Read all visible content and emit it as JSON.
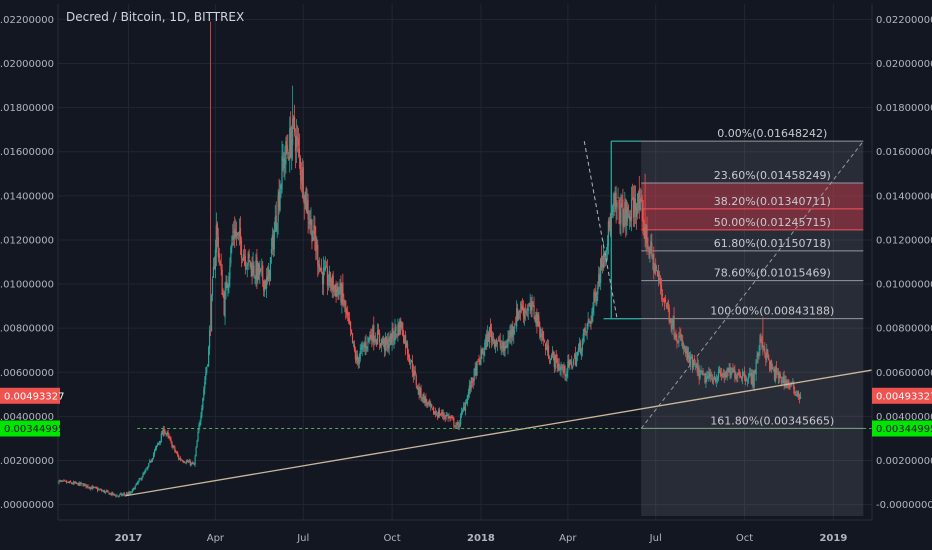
{
  "header": {
    "title": "Decred / Bitcoin, 1D, BITTREX"
  },
  "colors": {
    "background": "#131722",
    "grid": "#232632",
    "candle_up": "#26a69a",
    "candle_down": "#ef5350",
    "trendline": "#c9b99b",
    "fib_lines": "#9598a1",
    "fib_zone": "#f23645",
    "fib_box": "#787b86",
    "channel": "#26a69a",
    "support": "#4caf50",
    "price_badge": "#ef5350",
    "support_badge": "#00e600"
  },
  "axes": {
    "y_ticks": [
      "0.02200000",
      "0.02000000",
      "0.01800000",
      "0.01600000",
      "0.01400000",
      "0.01200000",
      "0.01000000",
      "0.00800000",
      "0.00600000",
      "0.00400000",
      "0.00200000",
      "-0.00000000"
    ],
    "y_tick_values": [
      0.022,
      0.02,
      0.018,
      0.016,
      0.014,
      0.012,
      0.01,
      0.008,
      0.006,
      0.004,
      0.002,
      0.0
    ],
    "x_ticks": [
      {
        "label": "2017",
        "date": "2017-01-01",
        "bold": true
      },
      {
        "label": "Apr",
        "date": "2017-04-01",
        "bold": false
      },
      {
        "label": "Jul",
        "date": "2017-07-01",
        "bold": false
      },
      {
        "label": "Oct",
        "date": "2017-10-01",
        "bold": false
      },
      {
        "label": "2018",
        "date": "2018-01-01",
        "bold": true
      },
      {
        "label": "Apr",
        "date": "2018-04-01",
        "bold": false
      },
      {
        "label": "Jul",
        "date": "2018-07-01",
        "bold": false
      },
      {
        "label": "Oct",
        "date": "2018-10-01",
        "bold": false
      },
      {
        "label": "2019",
        "date": "2019-01-01",
        "bold": true
      }
    ]
  },
  "badges": {
    "last_price": "0.00493327",
    "support_price": "0.00344995"
  },
  "chart_data": {
    "type": "candlestick",
    "title": "Decred / Bitcoin, 1D, BITTREX",
    "x_range": [
      "2016-10-20",
      "2019-02-10"
    ],
    "ylim": [
      -0.0007,
      0.0227
    ],
    "grid": true,
    "close_path": [
      [
        "2016-10-20",
        0.00105
      ],
      [
        "2016-11-15",
        0.0009
      ],
      [
        "2016-12-20",
        0.0004
      ],
      [
        "2017-01-03",
        0.0005
      ],
      [
        "2017-01-20",
        0.0016
      ],
      [
        "2017-02-07",
        0.0034
      ],
      [
        "2017-02-22",
        0.0021
      ],
      [
        "2017-03-10",
        0.0018
      ],
      [
        "2017-03-25",
        0.007
      ],
      [
        "2017-04-02",
        0.0125
      ],
      [
        "2017-04-10",
        0.009
      ],
      [
        "2017-04-20",
        0.0125
      ],
      [
        "2017-05-05",
        0.011
      ],
      [
        "2017-05-25",
        0.01
      ],
      [
        "2017-06-10",
        0.0155
      ],
      [
        "2017-06-22",
        0.017
      ],
      [
        "2017-07-05",
        0.0135
      ],
      [
        "2017-07-20",
        0.0105
      ],
      [
        "2017-08-10",
        0.0095
      ],
      [
        "2017-08-25",
        0.0065
      ],
      [
        "2017-09-10",
        0.0078
      ],
      [
        "2017-09-25",
        0.0072
      ],
      [
        "2017-10-10",
        0.0082
      ],
      [
        "2017-10-28",
        0.0052
      ],
      [
        "2017-11-12",
        0.0042
      ],
      [
        "2017-11-28",
        0.004
      ],
      [
        "2017-12-08",
        0.0035
      ],
      [
        "2017-12-22",
        0.0055
      ],
      [
        "2018-01-10",
        0.0078
      ],
      [
        "2018-01-25",
        0.007
      ],
      [
        "2018-02-10",
        0.0089
      ],
      [
        "2018-02-25",
        0.0088
      ],
      [
        "2018-03-10",
        0.007
      ],
      [
        "2018-03-28",
        0.006
      ],
      [
        "2018-04-10",
        0.0067
      ],
      [
        "2018-04-25",
        0.0085
      ],
      [
        "2018-05-08",
        0.0115
      ],
      [
        "2018-05-20",
        0.0135
      ],
      [
        "2018-06-02",
        0.013
      ],
      [
        "2018-06-12",
        0.0138
      ],
      [
        "2018-06-22",
        0.012
      ],
      [
        "2018-07-05",
        0.01
      ],
      [
        "2018-07-20",
        0.008
      ],
      [
        "2018-08-05",
        0.0065
      ],
      [
        "2018-08-20",
        0.0057
      ],
      [
        "2018-09-10",
        0.0059
      ],
      [
        "2018-09-25",
        0.006
      ],
      [
        "2018-10-10",
        0.0057
      ],
      [
        "2018-10-18",
        0.0075
      ],
      [
        "2018-10-30",
        0.006
      ],
      [
        "2018-11-15",
        0.0055
      ],
      [
        "2018-11-28",
        0.00493
      ]
    ],
    "spikes": [
      {
        "date": "2017-03-27",
        "high": 0.0219
      },
      {
        "date": "2017-06-20",
        "high": 0.019
      },
      {
        "date": "2018-06-20",
        "high": 0.015
      },
      {
        "date": "2018-10-20",
        "high": 0.0085
      }
    ],
    "trendline": {
      "from": [
        "2016-12-29",
        0.0004
      ],
      "to": [
        "2019-02-10",
        0.0061
      ]
    },
    "support_line": {
      "price": 0.00344995,
      "from": "2017-01-10"
    },
    "channel": {
      "top": {
        "from": [
          "2018-05-16",
          0.01648
        ],
        "to": [
          "2018-06-16",
          0.01648
        ]
      },
      "bottom": {
        "from": [
          "2018-05-08",
          0.00843
        ],
        "to": [
          "2018-06-16",
          0.00843
        ]
      },
      "vertical": {
        "date": "2018-05-16",
        "from": 0.00843,
        "to": 0.01648
      },
      "diagonal_from": [
        "2018-04-18",
        0.01648
      ],
      "diagonal_to": [
        "2018-05-22",
        0.00843
      ]
    },
    "fibonacci": {
      "start_date": "2018-06-16",
      "end_date": "2019-02-01",
      "diagonal_from": [
        "2018-06-16",
        0.00345
      ],
      "diagonal_to": [
        "2019-02-01",
        0.01648
      ],
      "levels": [
        {
          "label": "0.00%(0.01648242)",
          "price": 0.01648242
        },
        {
          "label": "23.60%(0.01458249)",
          "price": 0.01458249
        },
        {
          "label": "38.20%(0.01340711)",
          "price": 0.01340711
        },
        {
          "label": "50.00%(0.01245715)",
          "price": 0.01245715
        },
        {
          "label": "61.80%(0.01150718)",
          "price": 0.01150718
        },
        {
          "label": "78.60%(0.01015469)",
          "price": 0.01015469
        },
        {
          "label": "100.00%(0.00843188)",
          "price": 0.00843188
        },
        {
          "label": "161.80%(0.00345665)",
          "price": 0.00345665
        }
      ],
      "highlighted_zone": [
        0.01458249,
        0.01245715
      ]
    }
  }
}
